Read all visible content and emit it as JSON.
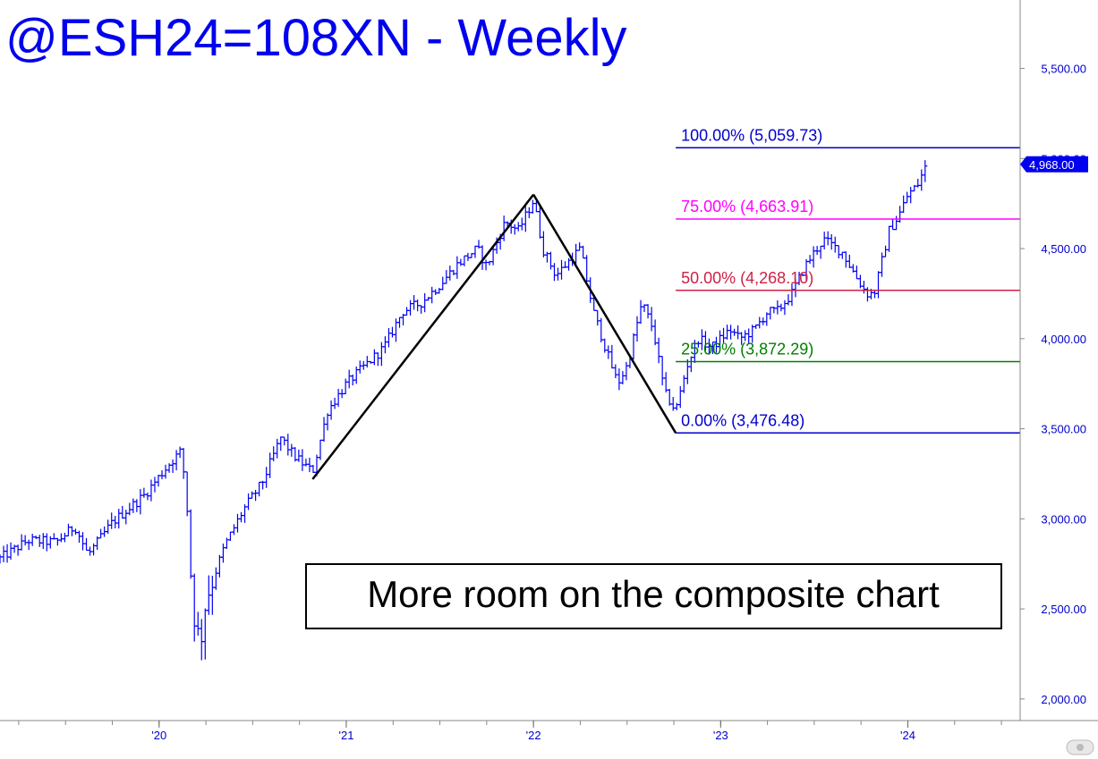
{
  "chart_data": {
    "type": "ohlc",
    "title": "@ESH24=108XN - Weekly",
    "annotation": "More room on the composite chart",
    "colors": {
      "bars": "#0000ee",
      "title": "#0000ee",
      "fib_100": "#0000cc",
      "fib_75": "#ff00ff",
      "fib_50": "#cc2244",
      "fib_25": "#008000",
      "fib_0": "#0000cc",
      "abc_lines": "#000000",
      "last_price_tag": "#0000ee"
    },
    "y_axis": {
      "range": [
        1880,
        5880
      ],
      "ticks": [
        "5,500.00",
        "5,000.00",
        "4,500.00",
        "4,000.00",
        "3,500.00",
        "3,000.00",
        "2,500.00",
        "2,000.00"
      ],
      "tick_values": [
        5500,
        5000,
        4500,
        4000,
        3500,
        3000,
        2500,
        2000
      ]
    },
    "x_axis": {
      "range": [
        2019.15,
        2024.6
      ],
      "labels": [
        "'20",
        "'21",
        "'22",
        "'23",
        "'24"
      ],
      "label_values": [
        2020.0,
        2021.0,
        2022.0,
        2023.0,
        2024.0
      ]
    },
    "last_price": {
      "label": "4,968.00",
      "value": 4968
    },
    "fib_levels": [
      {
        "label": "100.00% (5,059.73)",
        "value": 5059.73,
        "color_key": "fib_100",
        "start_x": 2022.76
      },
      {
        "label": "75.00% (4,663.91)",
        "value": 4663.91,
        "color_key": "fib_75",
        "start_x": 2022.76
      },
      {
        "label": "50.00% (4,268.10)",
        "value": 4268.1,
        "color_key": "fib_50",
        "start_x": 2022.76
      },
      {
        "label": "25.00% (3,872.29)",
        "value": 3872.29,
        "color_key": "fib_25",
        "start_x": 2022.76
      },
      {
        "label": "0.00% (3,476.48)",
        "value": 3476.48,
        "color_key": "fib_0",
        "start_x": 2022.76
      }
    ],
    "abc_pattern": [
      {
        "x": 2020.82,
        "y": 3220
      },
      {
        "x": 2022.0,
        "y": 4800
      },
      {
        "x": 2022.76,
        "y": 3476.48
      }
    ],
    "price_anchors": [
      [
        2019.15,
        2780
      ],
      [
        2019.3,
        2880
      ],
      [
        2019.45,
        2870
      ],
      [
        2019.55,
        2960
      ],
      [
        2019.62,
        2800
      ],
      [
        2019.75,
        2980
      ],
      [
        2019.92,
        3130
      ],
      [
        2020.05,
        3300
      ],
      [
        2020.12,
        3380
      ],
      [
        2020.15,
        3050
      ],
      [
        2020.18,
        2500
      ],
      [
        2020.22,
        2300
      ],
      [
        2020.25,
        2550
      ],
      [
        2020.35,
        2850
      ],
      [
        2020.45,
        3050
      ],
      [
        2020.55,
        3200
      ],
      [
        2020.65,
        3450
      ],
      [
        2020.72,
        3350
      ],
      [
        2020.82,
        3260
      ],
      [
        2020.9,
        3600
      ],
      [
        2021.0,
        3750
      ],
      [
        2021.1,
        3850
      ],
      [
        2021.2,
        3950
      ],
      [
        2021.3,
        4150
      ],
      [
        2021.4,
        4200
      ],
      [
        2021.5,
        4300
      ],
      [
        2021.6,
        4420
      ],
      [
        2021.7,
        4500
      ],
      [
        2021.75,
        4400
      ],
      [
        2021.85,
        4650
      ],
      [
        2021.92,
        4600
      ],
      [
        2022.0,
        4770
      ],
      [
        2022.05,
        4500
      ],
      [
        2022.12,
        4350
      ],
      [
        2022.18,
        4420
      ],
      [
        2022.25,
        4500
      ],
      [
        2022.32,
        4150
      ],
      [
        2022.4,
        3900
      ],
      [
        2022.45,
        3750
      ],
      [
        2022.5,
        3850
      ],
      [
        2022.58,
        4200
      ],
      [
        2022.64,
        4050
      ],
      [
        2022.7,
        3700
      ],
      [
        2022.76,
        3600
      ],
      [
        2022.82,
        3850
      ],
      [
        2022.88,
        4000
      ],
      [
        2022.95,
        3950
      ],
      [
        2023.05,
        4050
      ],
      [
        2023.1,
        4000
      ],
      [
        2023.18,
        4050
      ],
      [
        2023.25,
        4150
      ],
      [
        2023.3,
        4150
      ],
      [
        2023.38,
        4250
      ],
      [
        2023.45,
        4400
      ],
      [
        2023.5,
        4480
      ],
      [
        2023.55,
        4550
      ],
      [
        2023.65,
        4480
      ],
      [
        2023.72,
        4350
      ],
      [
        2023.78,
        4250
      ],
      [
        2023.82,
        4250
      ],
      [
        2023.85,
        4380
      ],
      [
        2023.9,
        4600
      ],
      [
        2023.95,
        4680
      ],
      [
        2024.0,
        4800
      ],
      [
        2024.05,
        4850
      ],
      [
        2024.1,
        4968
      ]
    ]
  }
}
